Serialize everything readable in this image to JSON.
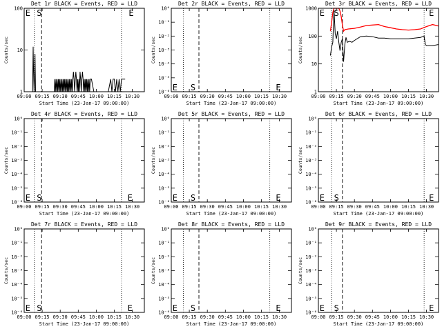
{
  "x_axis": {
    "tick_labels": [
      "09:00",
      "09:15",
      "09:30",
      "09:45",
      "10:00",
      "10:15",
      "10:30"
    ],
    "tick_minutes": [
      0,
      15,
      30,
      45,
      60,
      75,
      90
    ],
    "xlim_minutes": [
      0,
      100
    ],
    "label": "Start Time (23-Jan-17 09:00:00)"
  },
  "y_label": "Counts/sec",
  "series_colors": {
    "events": "#000000",
    "lld": "#ff0000"
  },
  "chart_data": [
    {
      "type": "line",
      "title": "Det 1r BLACK = Events, RED = LLD",
      "ylabel": "Counts/sec",
      "xlabel": "Start Time (23-Jan-17 09:00:00)",
      "y_scale": "log",
      "ylim": [
        1,
        100
      ],
      "ytick_labels": [
        "1",
        "10",
        "100"
      ],
      "ytick_values": [
        1,
        10,
        100
      ],
      "markers": {
        "E_left": 1,
        "S": 10.5,
        "dotted": [
          8.5,
          81
        ],
        "dashed": [
          14.5
        ],
        "E_right": 87
      },
      "marker_labels": {
        "E": "E",
        "S": "S"
      },
      "marker_row": "top",
      "series": [
        {
          "name": "Events",
          "color": "#000000",
          "x": [
            7,
            7.5,
            7.8,
            8.2,
            8.6,
            9,
            9.5,
            10,
            25,
            25.5,
            26,
            26.5,
            27,
            27.5,
            28,
            28.5,
            29,
            29.5,
            30,
            30.5,
            31,
            31.5,
            32,
            32.5,
            33,
            33.5,
            34,
            34.5,
            35,
            35.5,
            36,
            36.5,
            37,
            37.5,
            38,
            38.5,
            39,
            39.5,
            40,
            40.5,
            41,
            41.5,
            42,
            42.5,
            43,
            43.5,
            44,
            44.5,
            45,
            45.5,
            46,
            46.5,
            47,
            47.5,
            48,
            48.5,
            49,
            49.5,
            50,
            50.5,
            51,
            51.5,
            52,
            52.5,
            53,
            53.5,
            54,
            54.5,
            55,
            55.5,
            56,
            58,
            62,
            66,
            70,
            72,
            73,
            74,
            75,
            76,
            77,
            78,
            79,
            80,
            81,
            82,
            83,
            84
          ],
          "y": [
            1,
            12,
            3,
            1,
            2,
            8,
            1,
            1,
            1,
            2,
            1,
            2,
            1,
            2,
            1,
            2,
            1,
            2,
            1,
            2,
            1,
            2,
            1,
            2,
            1,
            2,
            1,
            2,
            1,
            2,
            1,
            2,
            1,
            2,
            1,
            2,
            1,
            2,
            1,
            2,
            3,
            2,
            1,
            2,
            3,
            2,
            1,
            2,
            1,
            2,
            1,
            3,
            2,
            1,
            2,
            3,
            2,
            1,
            2,
            1,
            2,
            1,
            2,
            1,
            2,
            1,
            2,
            1,
            2,
            2,
            2,
            1,
            1,
            1,
            1,
            2,
            1,
            2,
            2,
            1,
            2,
            1,
            2,
            1,
            2,
            2,
            2,
            2
          ]
        }
      ]
    },
    {
      "type": "line",
      "title": "Det 2r BLACK = Events, RED = LLD",
      "ylabel": "Counts/sec",
      "xlabel": "Start Time (23-Jan-17 09:00:00)",
      "y_scale": "log",
      "ylim": [
        1e-06,
        1
      ],
      "ytick_labels": [
        "10⁰",
        "10⁻¹",
        "10⁻²",
        "10⁻³",
        "10⁻⁴",
        "10⁻⁵",
        "10⁻⁶"
      ],
      "ytick_values": [
        1,
        0.1,
        0.01,
        0.001,
        0.0001,
        1e-05,
        1e-06
      ],
      "markers": {
        "E_left": 1,
        "S": 16,
        "dotted": [
          10,
          82
        ],
        "dashed": [
          23
        ],
        "E_right": 87
      },
      "marker_labels": {
        "E": "E",
        "S": "S"
      },
      "marker_row": "bottom",
      "series": []
    },
    {
      "type": "line",
      "title": "Det 3r BLACK = Events, RED = LLD",
      "ylabel": "Counts/sec",
      "xlabel": "Start Time (23-Jan-17 09:00:00)",
      "y_scale": "log",
      "ylim": [
        1,
        1000
      ],
      "ytick_labels": [
        "1",
        "10",
        "100",
        "1000"
      ],
      "ytick_values": [
        1,
        10,
        100,
        1000
      ],
      "markers": {
        "E_left": 1,
        "S": 13,
        "dotted": [
          11,
          88
        ],
        "dashed": [
          20
        ],
        "E_right": 92
      },
      "marker_labels": {
        "E": "E",
        "S": "S"
      },
      "marker_row": "top",
      "series": [
        {
          "name": "Events",
          "color": "#000000",
          "x": [
            10,
            11,
            12,
            13,
            14,
            15,
            16,
            17,
            18,
            19,
            20,
            21,
            22,
            23,
            24,
            26,
            28,
            30,
            35,
            40,
            45,
            50,
            55,
            60,
            65,
            70,
            75,
            80,
            85,
            88,
            89,
            90,
            95,
            100
          ],
          "y": [
            20,
            40,
            60,
            900,
            120,
            80,
            150,
            60,
            30,
            60,
            80,
            12,
            50,
            90,
            60,
            65,
            60,
            70,
            95,
            100,
            95,
            85,
            85,
            80,
            80,
            80,
            80,
            85,
            90,
            100,
            50,
            45,
            45,
            50
          ]
        },
        {
          "name": "LLD",
          "color": "#ff0000",
          "x": [
            10,
            11,
            12,
            13,
            14,
            15,
            16,
            17,
            18,
            19,
            20,
            21,
            22,
            25,
            30,
            35,
            40,
            45,
            50,
            55,
            60,
            65,
            70,
            75,
            80,
            85,
            90,
            95,
            100
          ],
          "y": [
            150,
            300,
            700,
            1000,
            1000,
            1000,
            1000,
            1000,
            800,
            500,
            250,
            150,
            170,
            180,
            190,
            210,
            240,
            250,
            260,
            220,
            200,
            180,
            170,
            165,
            170,
            180,
            220,
            260,
            230
          ]
        }
      ]
    },
    {
      "type": "line",
      "title": "Det 4r BLACK = Events, RED = LLD",
      "ylabel": "Counts/sec",
      "xlabel": "Start Time (23-Jan-17 09:00:00)",
      "y_scale": "log",
      "ylim": [
        1e-06,
        1
      ],
      "ytick_labels": [
        "10⁰",
        "10⁻¹",
        "10⁻²",
        "10⁻³",
        "10⁻⁴",
        "10⁻⁵",
        "10⁻⁶"
      ],
      "ytick_values": [
        1,
        0.1,
        0.01,
        0.001,
        0.0001,
        1e-05,
        1e-06
      ],
      "markers": {
        "E_left": 1,
        "S": 10.5,
        "dotted": [
          8.5,
          81
        ],
        "dashed": [
          14.5
        ],
        "E_right": 86
      },
      "marker_labels": {
        "E": "E",
        "S": "S"
      },
      "marker_row": "bottom",
      "series": []
    },
    {
      "type": "line",
      "title": "Det 5r BLACK = Events, RED = LLD",
      "ylabel": "Counts/sec",
      "xlabel": "Start Time (23-Jan-17 09:00:00)",
      "y_scale": "log",
      "ylim": [
        1e-06,
        1
      ],
      "ytick_labels": [
        "10⁰",
        "10⁻¹",
        "10⁻²",
        "10⁻³",
        "10⁻⁴",
        "10⁻⁵",
        "10⁻⁶"
      ],
      "ytick_values": [
        1,
        0.1,
        0.01,
        0.001,
        0.0001,
        1e-05,
        1e-06
      ],
      "markers": {
        "E_left": 1,
        "S": 16,
        "dotted": [
          10,
          82
        ],
        "dashed": [
          23
        ],
        "E_right": 87
      },
      "marker_labels": {
        "E": "E",
        "S": "S"
      },
      "marker_row": "bottom",
      "series": []
    },
    {
      "type": "line",
      "title": "Det 6r BLACK = Events, RED = LLD",
      "ylabel": "Counts/sec",
      "xlabel": "Start Time (23-Jan-17 09:00:00)",
      "y_scale": "log",
      "ylim": [
        1e-06,
        1
      ],
      "ytick_labels": [
        "10⁰",
        "10⁻¹",
        "10⁻²",
        "10⁻³",
        "10⁻⁴",
        "10⁻⁵",
        "10⁻⁶"
      ],
      "ytick_values": [
        1,
        0.1,
        0.01,
        0.001,
        0.0001,
        1e-05,
        1e-06
      ],
      "markers": {
        "E_left": 1,
        "S": 13,
        "dotted": [
          11,
          88
        ],
        "dashed": [
          20
        ],
        "E_right": 92
      },
      "marker_labels": {
        "E": "E",
        "S": "S"
      },
      "marker_row": "bottom",
      "series": []
    },
    {
      "type": "line",
      "title": "Det 7r BLACK = Events, RED = LLD",
      "ylabel": "Counts/sec",
      "xlabel": "Start Time (23-Jan-17 09:00:00)",
      "y_scale": "log",
      "ylim": [
        1e-06,
        1
      ],
      "ytick_labels": [
        "10⁰",
        "10⁻¹",
        "10⁻²",
        "10⁻³",
        "10⁻⁴",
        "10⁻⁵",
        "10⁻⁶"
      ],
      "ytick_values": [
        1,
        0.1,
        0.01,
        0.001,
        0.0001,
        1e-05,
        1e-06
      ],
      "markers": {
        "E_left": 1,
        "S": 10.5,
        "dotted": [
          8.5,
          81
        ],
        "dashed": [
          14.5
        ],
        "E_right": 86
      },
      "marker_labels": {
        "E": "E",
        "S": "S"
      },
      "marker_row": "bottom",
      "series": []
    },
    {
      "type": "line",
      "title": "Det 8r BLACK = Events, RED = LLD",
      "ylabel": "Counts/sec",
      "xlabel": "Start Time (23-Jan-17 09:00:00)",
      "y_scale": "log",
      "ylim": [
        1e-06,
        1
      ],
      "ytick_labels": [
        "10⁰",
        "10⁻¹",
        "10⁻²",
        "10⁻³",
        "10⁻⁴",
        "10⁻⁵",
        "10⁻⁶"
      ],
      "ytick_values": [
        1,
        0.1,
        0.01,
        0.001,
        0.0001,
        1e-05,
        1e-06
      ],
      "markers": {
        "E_left": 1,
        "S": 16,
        "dotted": [
          10,
          82
        ],
        "dashed": [
          23
        ],
        "E_right": 87
      },
      "marker_labels": {
        "E": "E",
        "S": "S"
      },
      "marker_row": "bottom",
      "series": []
    },
    {
      "type": "line",
      "title": "Det 9r BLACK = Events, RED = LLD",
      "ylabel": "Counts/sec",
      "xlabel": "Start Time (23-Jan-17 09:00:00)",
      "y_scale": "log",
      "ylim": [
        1e-06,
        1
      ],
      "ytick_labels": [
        "10⁰",
        "10⁻¹",
        "10⁻²",
        "10⁻³",
        "10⁻⁴",
        "10⁻⁵",
        "10⁻⁶"
      ],
      "ytick_values": [
        1,
        0.1,
        0.01,
        0.001,
        0.0001,
        1e-05,
        1e-06
      ],
      "markers": {
        "E_left": 1,
        "S": 13,
        "dotted": [
          11,
          88
        ],
        "dashed": [
          20
        ],
        "E_right": 92
      },
      "marker_labels": {
        "E": "E",
        "S": "S"
      },
      "marker_row": "bottom",
      "series": []
    }
  ]
}
